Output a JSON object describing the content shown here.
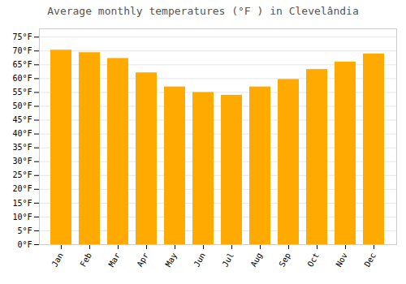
{
  "chart_data": {
    "type": "bar",
    "title": "Average monthly temperatures (°F ) in Clevelândia",
    "categories": [
      "Jan",
      "Feb",
      "Mar",
      "Apr",
      "May",
      "Jun",
      "Jul",
      "Aug",
      "Sep",
      "Oct",
      "Nov",
      "Dec"
    ],
    "values": [
      70.3,
      69.4,
      67.3,
      62.1,
      57.0,
      55.0,
      54.0,
      57.0,
      59.7,
      63.3,
      66.0,
      68.9
    ],
    "color": "#FFAA00",
    "ylim": [
      0,
      78
    ],
    "yticks": [
      {
        "value": 0,
        "label": "0°F"
      },
      {
        "value": 5,
        "label": "5°F"
      },
      {
        "value": 10,
        "label": "10°F"
      },
      {
        "value": 15,
        "label": "15°F"
      },
      {
        "value": 20,
        "label": "20°F"
      },
      {
        "value": 25,
        "label": "25°F"
      },
      {
        "value": 30,
        "label": "30°F"
      },
      {
        "value": 35,
        "label": "35°F"
      },
      {
        "value": 40,
        "label": "40°F"
      },
      {
        "value": 45,
        "label": "45°F"
      },
      {
        "value": 50,
        "label": "50°F"
      },
      {
        "value": 55,
        "label": "55°F"
      },
      {
        "value": 60,
        "label": "60°F"
      },
      {
        "value": 65,
        "label": "65°F"
      },
      {
        "value": 70,
        "label": "70°F"
      },
      {
        "value": 75,
        "label": "75°F"
      }
    ],
    "grid": true
  }
}
